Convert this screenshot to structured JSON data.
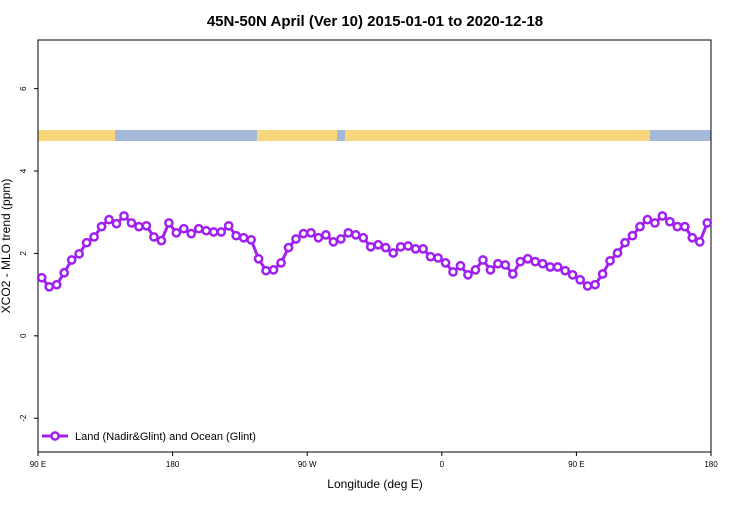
{
  "chart_data": {
    "type": "line",
    "title": "45N-50N April (Ver 10)   2015-01-01 to 2020-12-18",
    "x_label": "Longitude (deg E)",
    "y_label": "XCO2 - MLO trend (ppm)",
    "xlim": [
      90,
      540
    ],
    "ylim": [
      -2.82,
      7.18
    ],
    "xticks": [
      {
        "value": 90,
        "label": "90 E"
      },
      180,
      {
        "value": 270,
        "label": "90 W"
      },
      {
        "value": 360,
        "label": "0"
      },
      {
        "value": 450,
        "label": "90 E"
      },
      {
        "value": 540,
        "label": "180"
      }
    ],
    "yticks": [
      -2,
      0,
      2,
      4,
      6
    ],
    "legend": "bottom-left",
    "x": [
      92.5,
      97.5,
      102.5,
      107.5,
      112.5,
      117.5,
      122.5,
      127.5,
      132.5,
      137.5,
      142.5,
      147.5,
      152.5,
      157.5,
      162.5,
      167.5,
      172.5,
      177.5,
      182.5,
      187.5,
      192.5,
      197.5,
      202.5,
      207.5,
      212.5,
      217.5,
      222.5,
      227.5,
      232.5,
      237.5,
      242.5,
      247.5,
      252.5,
      257.5,
      262.5,
      267.5,
      272.5,
      277.5,
      282.5,
      287.5,
      292.5,
      297.5,
      302.5,
      307.5,
      312.5,
      317.5,
      322.5,
      327.5,
      332.5,
      337.5,
      342.5,
      347.5,
      352.5,
      357.5,
      362.5,
      367.5,
      372.5,
      377.5,
      382.5,
      387.5,
      392.5,
      397.5,
      402.5,
      407.5,
      412.5,
      417.5,
      422.5,
      427.5,
      432.5,
      437.5,
      442.5,
      447.5,
      452.5,
      457.5,
      462.5,
      467.5,
      472.5,
      477.5,
      482.5,
      487.5,
      492.5,
      497.5,
      502.5,
      507.5,
      512.5,
      517.5,
      522.5,
      527.5,
      532.5,
      537.5
    ],
    "series": [
      {
        "name": "Land (Nadir&Glint) and Ocean (Glint)",
        "color": "#a020f0",
        "values": [
          1.41,
          1.19,
          1.24,
          1.53,
          1.84,
          1.99,
          2.26,
          2.4,
          2.65,
          2.82,
          2.72,
          2.91,
          2.74,
          2.65,
          2.67,
          2.4,
          2.31,
          2.74,
          2.5,
          2.6,
          2.48,
          2.6,
          2.55,
          2.52,
          2.52,
          2.67,
          2.43,
          2.38,
          2.33,
          1.87,
          1.58,
          1.6,
          1.77,
          2.14,
          2.35,
          2.48,
          2.5,
          2.38,
          2.45,
          2.28,
          2.35,
          2.5,
          2.45,
          2.38,
          2.16,
          2.21,
          2.14,
          2.01,
          2.16,
          2.18,
          2.11,
          2.11,
          1.92,
          1.89,
          1.77,
          1.55,
          1.7,
          1.48,
          1.6,
          1.84,
          1.6,
          1.75,
          1.72,
          1.5,
          1.8,
          1.87,
          1.8,
          1.75,
          1.67,
          1.67,
          1.58,
          1.48,
          1.36,
          1.21,
          1.24,
          1.5,
          1.82,
          2.01,
          2.26,
          2.43,
          2.65,
          2.82,
          2.74,
          2.91,
          2.77,
          2.65,
          2.65,
          2.38,
          2.28,
          2.74
        ]
      }
    ]
  }
}
